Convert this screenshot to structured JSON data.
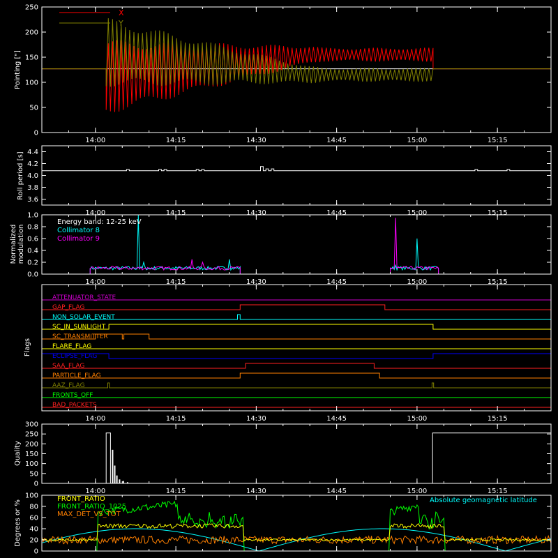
{
  "time_axis": {
    "range": [
      "13:50",
      "15:25"
    ],
    "ticks": [
      "14:00",
      "14:15",
      "14:30",
      "14:45",
      "15:00",
      "15:15"
    ],
    "minor_step_minutes": 5
  },
  "chart_data": [
    {
      "type": "line",
      "panel": "pointing",
      "ylabel": "Pointing [\"]",
      "ylim": [
        0,
        250
      ],
      "yticks": [
        0,
        50,
        100,
        150,
        200,
        250
      ],
      "series": [
        {
          "name": "X",
          "color": "#ff0000",
          "start": "14:02",
          "end": "15:03",
          "center_start": 110,
          "center_end": 155,
          "amp_start": 65,
          "amp_end": 12,
          "period_min": 0.8
        },
        {
          "name": "Y",
          "color": "#808000",
          "start": "14:02",
          "end": "15:03",
          "center_start": 160,
          "center_end": 115,
          "amp_start": 60,
          "amp_end": 12,
          "period_min": 0.8
        }
      ],
      "baseline": {
        "value": 127,
        "color": "#ffffff"
      }
    },
    {
      "type": "line",
      "panel": "roll",
      "ylabel": "Roll period [s]",
      "ylim": [
        3.5,
        4.5
      ],
      "yticks": [
        "3.6",
        "3.8",
        "4.0",
        "4.2",
        "4.4"
      ],
      "series": [
        {
          "name": "roll period",
          "color": "#ffffff",
          "base": 4.08,
          "bumps": [
            [
              "14:06",
              4.1
            ],
            [
              "14:12",
              4.1
            ],
            [
              "14:13",
              4.1
            ],
            [
              "14:19",
              4.1
            ],
            [
              "14:20",
              4.1
            ],
            [
              "14:31",
              4.15
            ],
            [
              "14:32",
              4.11
            ],
            [
              "14:33",
              4.11
            ],
            [
              "15:11",
              4.1
            ],
            [
              "15:17",
              4.1
            ]
          ]
        }
      ]
    },
    {
      "type": "line",
      "panel": "modulation",
      "ylabel": [
        "Normalized",
        "modulation"
      ],
      "ylim": [
        0,
        1.0
      ],
      "yticks": [
        "0.0",
        "0.2",
        "0.4",
        "0.6",
        "0.8",
        "1.0"
      ],
      "annotations": [
        "Energy band: 12-25 keV",
        "Collimator 8",
        "Collimator 9"
      ],
      "intervals": [
        [
          "13:59",
          "14:27"
        ],
        [
          "14:55",
          "15:04"
        ]
      ],
      "series": [
        {
          "name": "Collimator 8",
          "color": "#00ffff",
          "spikes": [
            [
              "14:08",
              1.0
            ],
            [
              "14:09",
              0.2
            ],
            [
              "14:25",
              0.25
            ],
            [
              "15:00",
              0.6
            ],
            [
              "14:56",
              0.15
            ]
          ]
        },
        {
          "name": "Collimator 9",
          "color": "#ff00ff",
          "spikes": [
            [
              "14:56",
              0.95
            ],
            [
              "14:18",
              0.25
            ],
            [
              "14:20",
              0.2
            ]
          ]
        }
      ]
    },
    {
      "type": "line",
      "panel": "flags",
      "ylabel": "Flags",
      "series": [
        {
          "name": "ATTENUATOR_STATE",
          "color": "#cc00cc",
          "high": []
        },
        {
          "name": "GAP_FLAG",
          "color": "#ff2020",
          "high": [
            [
              "14:27",
              "14:54"
            ]
          ]
        },
        {
          "name": "NON_SOLAR_EVENT",
          "color": "#00ffff",
          "high": [
            [
              "14:26.5",
              "14:27"
            ]
          ]
        },
        {
          "name": "SC_IN_SUNLIGHT",
          "color": "#ffff00",
          "high": [
            [
              "14:02.5",
              "15:03"
            ]
          ]
        },
        {
          "name": "SC_TRANSMITTER",
          "color": "#ff8000",
          "high": [
            [
              "14:00",
              "14:05"
            ],
            [
              "14:05.3",
              "14:10"
            ]
          ]
        },
        {
          "name": "FLARE_FLAG",
          "color": "#ffff00",
          "high": []
        },
        {
          "name": "ECLIPSE_FLAG",
          "color": "#0000ff",
          "high": [
            [
              "13:50",
              "14:02.5"
            ],
            [
              "15:03",
              "15:25"
            ]
          ]
        },
        {
          "name": "SAA_FLAG",
          "color": "#ff2020",
          "high": [
            [
              "14:28",
              "14:52"
            ]
          ]
        },
        {
          "name": "PARTICLE_FLAG",
          "color": "#ff8000",
          "high": [
            [
              "14:27",
              "14:53"
            ]
          ]
        },
        {
          "name": "AAZ_FLAG",
          "color": "#808000",
          "high": [
            [
              "14:02.3",
              "14:02.6"
            ],
            [
              "15:02.8",
              "15:03.1"
            ]
          ]
        },
        {
          "name": "FRONTS_OFF",
          "color": "#00ff00",
          "high": []
        },
        {
          "name": "BAD_PACKETS",
          "color": "#ff2020",
          "high": []
        }
      ]
    },
    {
      "type": "bar",
      "panel": "quality",
      "ylabel": "Quality",
      "ylim": [
        0,
        300
      ],
      "yticks": [
        0,
        50,
        100,
        150,
        200,
        250,
        300
      ],
      "series": [
        {
          "name": "quality",
          "color": "#ffffff",
          "segments": [
            [
              [
                "13:50",
                0
              ],
              [
                "14:02",
                0
              ],
              [
                "14:02",
                255
              ],
              [
                "14:02.8",
                255
              ],
              [
                "14:02.8",
                0
              ],
              [
                "15:02.9",
                0
              ],
              [
                "15:02.9",
                255
              ],
              [
                "15:25",
                255
              ]
            ]
          ],
          "decay": [
            [
              "14:03.2",
              170
            ],
            [
              "14:03.6",
              90
            ],
            [
              "14:04",
              40
            ],
            [
              "14:04.5",
              20
            ],
            [
              "14:05.2",
              12
            ],
            [
              "14:06",
              6
            ]
          ]
        }
      ]
    },
    {
      "type": "line",
      "panel": "front_ratio",
      "ylabel": "Degrees or %",
      "ylim": [
        0,
        100
      ],
      "yticks": [
        0,
        20,
        40,
        60,
        80,
        100
      ],
      "legend": [
        "FRONT_RATIO",
        "FRONT_RATIO_1025",
        "MAX_DET_VS_TOT"
      ],
      "annotation": "Absolute geomagnetic latitude",
      "series": [
        {
          "name": "FRONT_RATIO",
          "color": "#ffff00"
        },
        {
          "name": "FRONT_RATIO_1025",
          "color": "#00ff00"
        },
        {
          "name": "MAX_DET_VS_TOT",
          "color": "#ff8000"
        },
        {
          "name": "Absolute geomagnetic latitude",
          "color": "#00ffff"
        }
      ]
    }
  ]
}
